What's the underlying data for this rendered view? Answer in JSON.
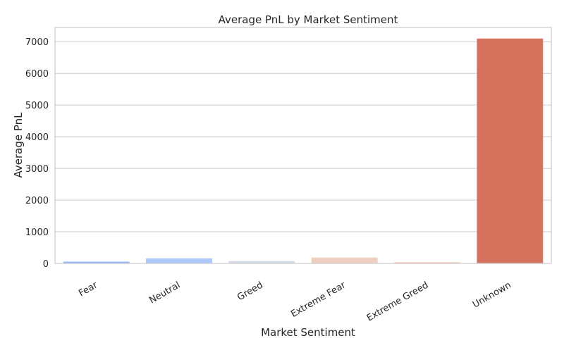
{
  "chart_data": {
    "type": "bar",
    "title": "Average PnL by Market Sentiment",
    "xlabel": "Market Sentiment",
    "ylabel": "Average PnL",
    "categories": [
      "Fear",
      "Neutral",
      "Greed",
      "Extreme Fear",
      "Extreme Greed",
      "Unknown"
    ],
    "values": [
      55,
      160,
      75,
      185,
      35,
      7100
    ],
    "colors": [
      "#92b4f9",
      "#aec8fa",
      "#d5dbe4",
      "#efcfc0",
      "#f2c3ad",
      "#d6735f"
    ],
    "ylim": [
      0,
      7450
    ],
    "yticks": [
      0,
      1000,
      2000,
      3000,
      4000,
      5000,
      6000,
      7000
    ],
    "grid": "horizontal",
    "legend": "none"
  }
}
